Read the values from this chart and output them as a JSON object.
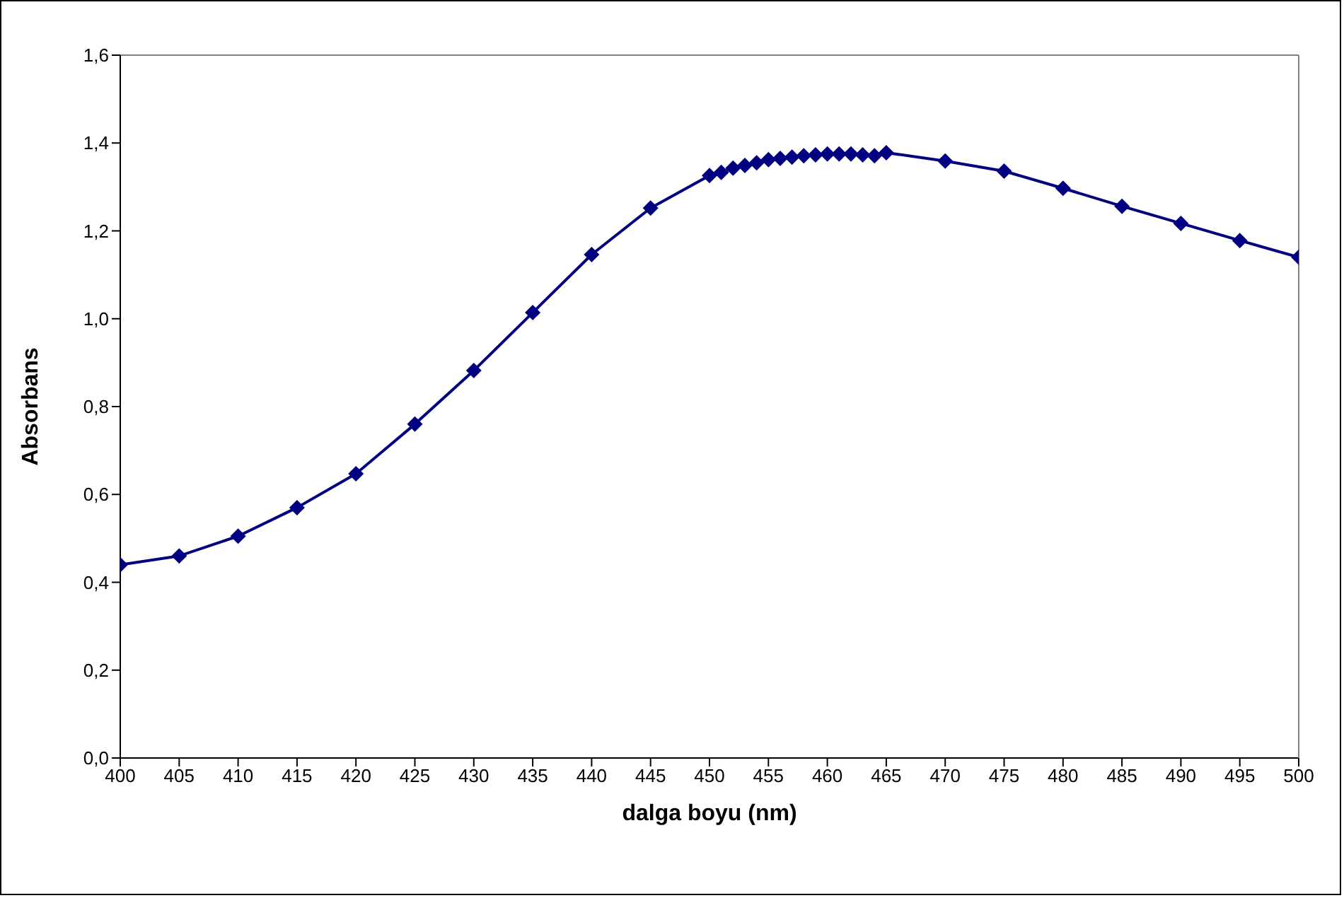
{
  "chart_data": {
    "type": "line",
    "xlabel": "dalga boyu (nm)",
    "ylabel": "Absorbans",
    "x": [
      400,
      405,
      410,
      415,
      420,
      425,
      430,
      435,
      440,
      445,
      450,
      451,
      452,
      453,
      454,
      455,
      456,
      457,
      458,
      459,
      460,
      461,
      462,
      463,
      464,
      465,
      470,
      475,
      480,
      485,
      490,
      495,
      500
    ],
    "series": [
      {
        "color": "#000080",
        "values": [
          0.44,
          0.46,
          0.505,
          0.57,
          0.647,
          0.76,
          0.882,
          1.014,
          1.146,
          1.252,
          1.326,
          1.333,
          1.343,
          1.349,
          1.355,
          1.362,
          1.365,
          1.368,
          1.371,
          1.373,
          1.375,
          1.375,
          1.375,
          1.373,
          1.371,
          1.378,
          1.359,
          1.336,
          1.297,
          1.256,
          1.217,
          1.178,
          1.14
        ]
      }
    ],
    "xlim": [
      400,
      500
    ],
    "xticks": [
      400,
      405,
      410,
      415,
      420,
      425,
      430,
      435,
      440,
      445,
      450,
      455,
      460,
      465,
      470,
      475,
      480,
      485,
      490,
      495,
      500
    ],
    "ylim": [
      0,
      1.6
    ],
    "yticks": [
      {
        "value": 0,
        "label": "0,0"
      },
      {
        "value": 0.2,
        "label": "0,2"
      },
      {
        "value": 0.4,
        "label": "0,4"
      },
      {
        "value": 0.6,
        "label": "0,6"
      },
      {
        "value": 0.8,
        "label": "0,8"
      },
      {
        "value": 1.0,
        "label": "1,0"
      },
      {
        "value": 1.2,
        "label": "1,2"
      },
      {
        "value": 1.4,
        "label": "1,4"
      },
      {
        "value": 1.6,
        "label": "1,6"
      }
    ],
    "grid": false,
    "legend": false,
    "marker": "diamond",
    "line_style": "solid"
  }
}
